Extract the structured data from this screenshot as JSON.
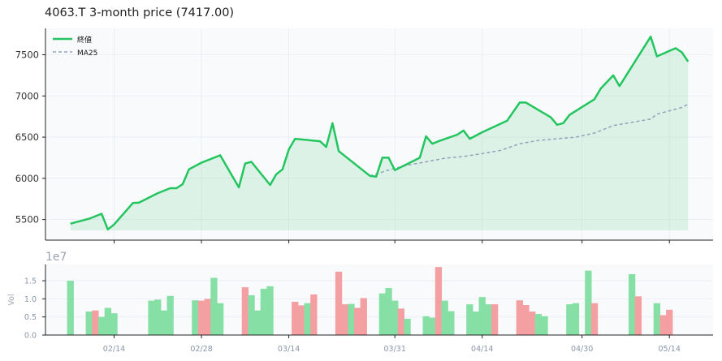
{
  "title": "4063.T  3-month price (7417.00)",
  "colors": {
    "price_line": "#22c55e",
    "price_fill": "#22c55e",
    "ma_line": "#94a3b8",
    "vol_up": "#86dfa5",
    "vol_down": "#f4a0a2",
    "panel_bg": "#f8fafc",
    "grid": "#e8edf3",
    "axis": "#222222"
  },
  "chart_data": [
    {
      "type": "line",
      "x_tick_labels": [
        "02/14",
        "02/28",
        "03/14",
        "03/31",
        "04/14",
        "04/30",
        "05/14"
      ],
      "yticks": [
        5500,
        6000,
        6500,
        7000,
        7500
      ],
      "ylim": [
        5250,
        7820
      ],
      "grid": true,
      "legend_position": "top-left",
      "series": [
        {
          "name": "終値",
          "style": "solid-with-area-fill",
          "points": [
            [
              "2025-02-07",
              5450
            ],
            [
              "2025-02-10",
              5510
            ],
            [
              "2025-02-12",
              5570
            ],
            [
              "2025-02-13",
              5380
            ],
            [
              "2025-02-14",
              5440
            ],
            [
              "2025-02-17",
              5700
            ],
            [
              "2025-02-18",
              5705
            ],
            [
              "2025-02-21",
              5820
            ],
            [
              "2025-02-23",
              5880
            ],
            [
              "2025-02-24",
              5880
            ],
            [
              "2025-02-25",
              5930
            ],
            [
              "2025-02-26",
              6110
            ],
            [
              "2025-02-28",
              6190
            ],
            [
              "2025-03-03",
              6280
            ],
            [
              "2025-03-06",
              5890
            ],
            [
              "2025-03-07",
              6180
            ],
            [
              "2025-03-08",
              6200
            ],
            [
              "2025-03-11",
              5920
            ],
            [
              "2025-03-12",
              6050
            ],
            [
              "2025-03-13",
              6110
            ],
            [
              "2025-03-14",
              6350
            ],
            [
              "2025-03-15",
              6480
            ],
            [
              "2025-03-19",
              6450
            ],
            [
              "2025-03-20",
              6380
            ],
            [
              "2025-03-21",
              6670
            ],
            [
              "2025-03-22",
              6330
            ],
            [
              "2025-03-27",
              6030
            ],
            [
              "2025-03-28",
              6020
            ],
            [
              "2025-03-29",
              6250
            ],
            [
              "2025-03-30",
              6250
            ],
            [
              "2025-03-31",
              6100
            ],
            [
              "2025-04-04",
              6250
            ],
            [
              "2025-04-05",
              6510
            ],
            [
              "2025-04-06",
              6420
            ],
            [
              "2025-04-07",
              6450
            ],
            [
              "2025-04-10",
              6530
            ],
            [
              "2025-04-11",
              6580
            ],
            [
              "2025-04-12",
              6480
            ],
            [
              "2025-04-14",
              6560
            ],
            [
              "2025-04-18",
              6700
            ],
            [
              "2025-04-20",
              6920
            ],
            [
              "2025-04-21",
              6920
            ],
            [
              "2025-04-25",
              6740
            ],
            [
              "2025-04-26",
              6650
            ],
            [
              "2025-04-27",
              6670
            ],
            [
              "2025-04-28",
              6770
            ],
            [
              "2025-05-02",
              6960
            ],
            [
              "2025-05-03",
              7090
            ],
            [
              "2025-05-05",
              7250
            ],
            [
              "2025-05-06",
              7120
            ],
            [
              "2025-05-11",
              7720
            ],
            [
              "2025-05-12",
              7480
            ],
            [
              "2025-05-15",
              7580
            ],
            [
              "2025-05-16",
              7530
            ],
            [
              "2025-05-17",
              7417
            ]
          ]
        },
        {
          "name": "MA25",
          "style": "dashed",
          "points": [
            [
              "2025-03-27",
              6030
            ],
            [
              "2025-03-30",
              6100
            ],
            [
              "2025-04-02",
              6160
            ],
            [
              "2025-04-05",
              6200
            ],
            [
              "2025-04-08",
              6245
            ],
            [
              "2025-04-11",
              6265
            ],
            [
              "2025-04-14",
              6300
            ],
            [
              "2025-04-17",
              6340
            ],
            [
              "2025-04-20",
              6420
            ],
            [
              "2025-04-23",
              6460
            ],
            [
              "2025-04-26",
              6480
            ],
            [
              "2025-04-29",
              6500
            ],
            [
              "2025-05-02",
              6550
            ],
            [
              "2025-05-05",
              6640
            ],
            [
              "2025-05-08",
              6680
            ],
            [
              "2025-05-11",
              6720
            ],
            [
              "2025-05-12",
              6780
            ],
            [
              "2025-05-14",
              6820
            ],
            [
              "2025-05-16",
              6860
            ],
            [
              "2025-05-17",
              6900
            ]
          ]
        }
      ]
    },
    {
      "type": "bar",
      "ylabel": "Vol",
      "scale_label": "1e7",
      "yticks": [
        0.0,
        0.5,
        1.0,
        1.5
      ],
      "ylim": [
        0,
        1.95
      ],
      "x_tick_labels": [
        "02/14",
        "02/28",
        "03/14",
        "03/31",
        "04/14",
        "04/30",
        "05/14"
      ],
      "bars": [
        [
          "2025-02-07",
          1.5,
          "up"
        ],
        [
          "2025-02-10",
          0.65,
          "up"
        ],
        [
          "2025-02-11",
          0.68,
          "down"
        ],
        [
          "2025-02-12",
          0.5,
          "up"
        ],
        [
          "2025-02-13",
          0.75,
          "up"
        ],
        [
          "2025-02-14",
          0.6,
          "up"
        ],
        [
          "2025-02-20",
          0.95,
          "up"
        ],
        [
          "2025-02-21",
          0.98,
          "up"
        ],
        [
          "2025-02-22",
          0.68,
          "up"
        ],
        [
          "2025-02-23",
          1.08,
          "up"
        ],
        [
          "2025-02-27",
          0.96,
          "up"
        ],
        [
          "2025-02-28",
          0.95,
          "down"
        ],
        [
          "2025-03-01",
          1.0,
          "down"
        ],
        [
          "2025-03-02",
          1.58,
          "up"
        ],
        [
          "2025-03-03",
          0.88,
          "up"
        ],
        [
          "2025-03-07",
          1.32,
          "down"
        ],
        [
          "2025-03-08",
          1.1,
          "up"
        ],
        [
          "2025-03-09",
          0.68,
          "up"
        ],
        [
          "2025-03-10",
          1.28,
          "up"
        ],
        [
          "2025-03-11",
          1.35,
          "up"
        ],
        [
          "2025-03-15",
          0.92,
          "down"
        ],
        [
          "2025-03-16",
          0.82,
          "down"
        ],
        [
          "2025-03-17",
          0.88,
          "up"
        ],
        [
          "2025-03-18",
          1.12,
          "down"
        ],
        [
          "2025-03-22",
          1.75,
          "down"
        ],
        [
          "2025-03-23",
          0.85,
          "down"
        ],
        [
          "2025-03-24",
          0.86,
          "up"
        ],
        [
          "2025-03-25",
          0.75,
          "down"
        ],
        [
          "2025-03-26",
          1.02,
          "down"
        ],
        [
          "2025-03-29",
          1.15,
          "up"
        ],
        [
          "2025-03-30",
          1.3,
          "up"
        ],
        [
          "2025-03-31",
          0.95,
          "up"
        ],
        [
          "2025-04-01",
          0.73,
          "down"
        ],
        [
          "2025-04-02",
          0.45,
          "up"
        ],
        [
          "2025-04-05",
          0.52,
          "up"
        ],
        [
          "2025-04-06",
          0.48,
          "up"
        ],
        [
          "2025-04-07",
          1.88,
          "down"
        ],
        [
          "2025-04-08",
          0.95,
          "up"
        ],
        [
          "2025-04-09",
          0.66,
          "up"
        ],
        [
          "2025-04-12",
          0.85,
          "up"
        ],
        [
          "2025-04-13",
          0.65,
          "up"
        ],
        [
          "2025-04-14",
          1.05,
          "up"
        ],
        [
          "2025-04-15",
          0.85,
          "up"
        ],
        [
          "2025-04-16",
          0.85,
          "down"
        ],
        [
          "2025-04-20",
          0.96,
          "down"
        ],
        [
          "2025-04-21",
          0.83,
          "down"
        ],
        [
          "2025-04-22",
          0.65,
          "down"
        ],
        [
          "2025-04-23",
          0.58,
          "up"
        ],
        [
          "2025-04-24",
          0.52,
          "up"
        ],
        [
          "2025-04-28",
          0.85,
          "up"
        ],
        [
          "2025-04-29",
          0.88,
          "up"
        ],
        [
          "2025-05-01",
          1.78,
          "up"
        ],
        [
          "2025-05-02",
          0.88,
          "down"
        ],
        [
          "2025-05-08",
          1.68,
          "up"
        ],
        [
          "2025-05-09",
          1.07,
          "down"
        ],
        [
          "2025-05-12",
          0.88,
          "up"
        ],
        [
          "2025-05-13",
          0.55,
          "down"
        ],
        [
          "2025-05-14",
          0.7,
          "down"
        ]
      ]
    }
  ]
}
